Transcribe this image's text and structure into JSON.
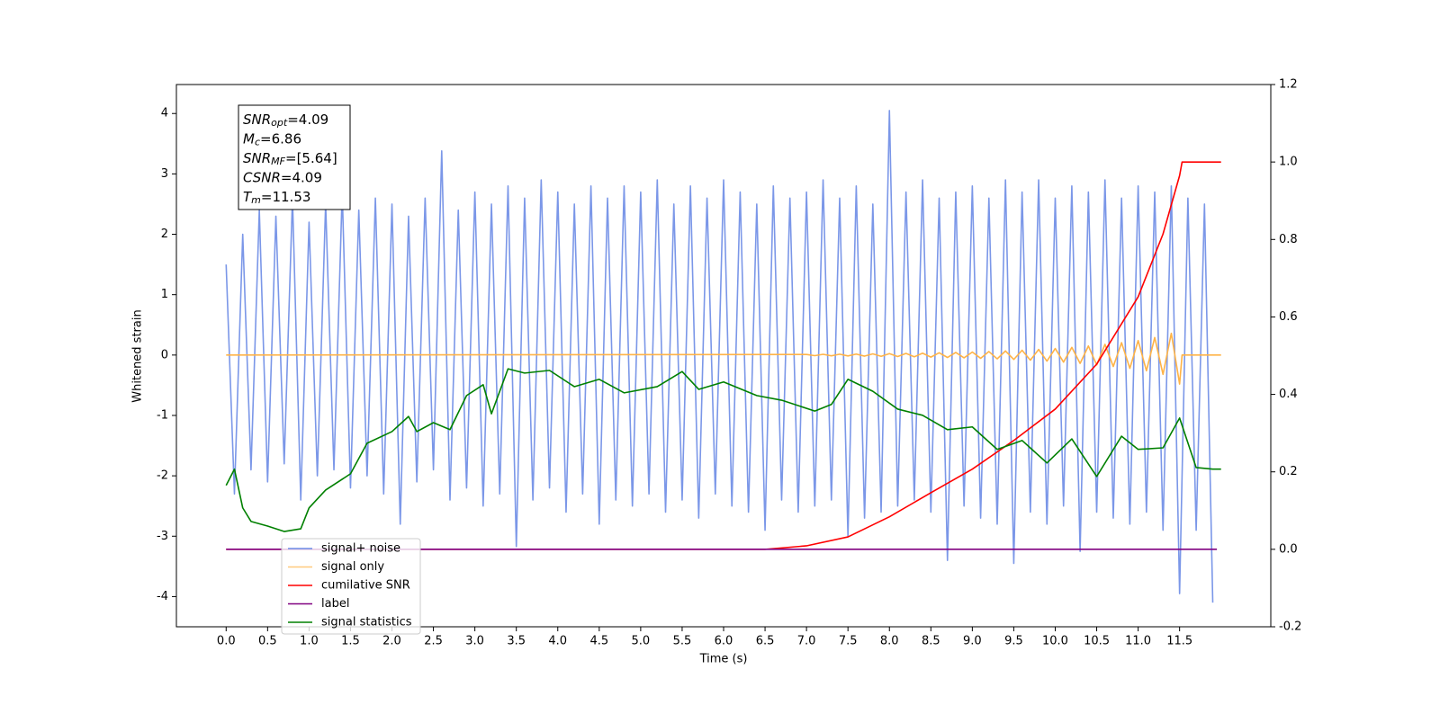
{
  "chart_data": {
    "type": "line",
    "xlabel": "Time (s)",
    "ylabel": "Whitened strain",
    "xlim": [
      -0.6,
      12.6
    ],
    "ylim": [
      -4.5,
      4.48
    ],
    "y2lim": [
      -0.2,
      1.2
    ],
    "xticks": [
      {
        "value": 0,
        "label": "0.0"
      },
      0.5,
      {
        "value": 1,
        "label": "1.0"
      },
      1.5,
      {
        "value": 2,
        "label": "2.0"
      },
      2.5,
      {
        "value": 3,
        "label": "3.0"
      },
      3.5,
      {
        "value": 4,
        "label": "4.0"
      },
      4.5,
      {
        "value": 5,
        "label": "5.0"
      },
      5.5,
      {
        "value": 6,
        "label": "6.0"
      },
      6.5,
      {
        "value": 7,
        "label": "7.0"
      },
      7.5,
      {
        "value": 8,
        "label": "8.0"
      },
      8.5,
      {
        "value": 9,
        "label": "9.0"
      },
      9.5,
      {
        "value": 10,
        "label": "10.0"
      },
      10.5,
      {
        "value": 11,
        "label": "11.0"
      },
      11.5
    ],
    "yticks": [
      -4,
      -3,
      -2,
      -1,
      0,
      1,
      2,
      3,
      4
    ],
    "y2ticks": [
      -0.2,
      {
        "value": 0,
        "label": "0.0"
      },
      0.2,
      0.4,
      0.6,
      0.8,
      {
        "value": 1,
        "label": "1.0"
      },
      1.2
    ],
    "legend_loc": "lower left",
    "annotation": [
      {
        "name": "SNR",
        "sub": "opt",
        "text": "=4.09"
      },
      {
        "name": "M",
        "sub": "c",
        "text": "=6.86"
      },
      {
        "name": "SNR",
        "sub": "MF",
        "text": "=[5.64]"
      },
      {
        "name": "CSNR",
        "text": "=4.09"
      },
      {
        "name": "T",
        "sub": "m",
        "text": "=11.53"
      }
    ],
    "series": [
      {
        "name": "signal+ noise",
        "color": "#6d8ce6",
        "axis": "y",
        "x": [
          0,
          0.1,
          0.2,
          0.3,
          0.4,
          0.5,
          0.6,
          0.7,
          0.8,
          0.9,
          1,
          1.1,
          1.2,
          1.3,
          1.4,
          1.5,
          1.6,
          1.7,
          1.8,
          1.9,
          2,
          2.1,
          2.2,
          2.3,
          2.4,
          2.5,
          2.6,
          2.7,
          2.8,
          2.9,
          3,
          3.1,
          3.2,
          3.3,
          3.4,
          3.5,
          3.6,
          3.7,
          3.8,
          3.9,
          4,
          4.1,
          4.2,
          4.3,
          4.4,
          4.5,
          4.6,
          4.7,
          4.8,
          4.9,
          5,
          5.1,
          5.2,
          5.3,
          5.4,
          5.5,
          5.6,
          5.7,
          5.8,
          5.9,
          6,
          6.1,
          6.2,
          6.3,
          6.4,
          6.5,
          6.6,
          6.7,
          6.8,
          6.9,
          7,
          7.1,
          7.2,
          7.3,
          7.4,
          7.5,
          7.6,
          7.7,
          7.8,
          7.9,
          8,
          8.1,
          8.2,
          8.3,
          8.4,
          8.5,
          8.6,
          8.7,
          8.8,
          8.9,
          9,
          9.1,
          9.2,
          9.3,
          9.4,
          9.5,
          9.6,
          9.7,
          9.8,
          9.9,
          10,
          10.1,
          10.2,
          10.3,
          10.4,
          10.5,
          10.6,
          10.7,
          10.8,
          10.9,
          11,
          11.1,
          11.2,
          11.3,
          11.4,
          11.5,
          11.6,
          11.7,
          11.8,
          11.9
        ],
        "values": [
          1.5,
          -2.3,
          2.0,
          -1.9,
          2.4,
          -2.1,
          2.3,
          -1.8,
          2.6,
          -2.4,
          2.2,
          -2.0,
          2.5,
          -1.9,
          2.7,
          -2.2,
          2.4,
          -2.0,
          2.6,
          -2.3,
          2.5,
          -2.8,
          2.3,
          -2.1,
          2.6,
          -1.9,
          3.38,
          -2.4,
          2.4,
          -2.2,
          2.7,
          -2.5,
          2.5,
          -2.3,
          2.8,
          -3.17,
          2.6,
          -2.4,
          2.9,
          -2.2,
          2.7,
          -2.6,
          2.5,
          -2.3,
          2.8,
          -2.8,
          2.6,
          -2.4,
          2.8,
          -2.5,
          2.7,
          -2.3,
          2.9,
          -2.6,
          2.5,
          -2.4,
          2.8,
          -2.7,
          2.6,
          -2.3,
          2.9,
          -2.5,
          2.7,
          -2.6,
          2.5,
          -2.9,
          2.8,
          -2.4,
          2.6,
          -2.6,
          2.7,
          -2.5,
          2.9,
          -2.4,
          2.6,
          -3.0,
          2.8,
          -2.7,
          2.5,
          -2.6,
          4.05,
          -2.5,
          2.7,
          -2.4,
          2.9,
          -2.6,
          2.6,
          -3.4,
          2.7,
          -2.5,
          2.8,
          -2.7,
          2.6,
          -2.8,
          2.9,
          -3.45,
          2.7,
          -2.6,
          2.9,
          -2.8,
          2.6,
          -2.5,
          2.8,
          -3.25,
          2.7,
          -2.6,
          2.9,
          -2.7,
          2.6,
          -2.8,
          2.8,
          -2.6,
          2.7,
          -2.9,
          2.8,
          -3.95,
          2.6,
          -2.9,
          2.5,
          -4.1
        ]
      },
      {
        "name": "signal only",
        "color": "#ffb347",
        "axis": "y",
        "x": [
          0,
          7,
          7.1,
          7.2,
          7.3,
          7.4,
          7.5,
          7.6,
          7.7,
          7.8,
          7.9,
          8,
          8.1,
          8.2,
          8.3,
          8.4,
          8.5,
          8.6,
          8.7,
          8.8,
          8.9,
          9,
          9.1,
          9.2,
          9.3,
          9.4,
          9.5,
          9.6,
          9.7,
          9.8,
          9.9,
          10,
          10.1,
          10.2,
          10.3,
          10.4,
          10.5,
          10.6,
          10.7,
          10.8,
          10.9,
          11,
          11.1,
          11.2,
          11.3,
          11.4,
          11.5,
          11.53,
          12
        ],
        "values": [
          0,
          0.01,
          -0.01,
          0.012,
          -0.013,
          0.014,
          -0.015,
          0.016,
          -0.018,
          0.02,
          -0.021,
          0.023,
          -0.025,
          0.027,
          -0.029,
          0.031,
          -0.034,
          0.037,
          -0.04,
          0.043,
          -0.046,
          0.05,
          -0.054,
          0.058,
          -0.063,
          0.068,
          -0.073,
          0.079,
          -0.085,
          0.092,
          -0.1,
          0.108,
          -0.117,
          0.127,
          -0.138,
          0.15,
          -0.163,
          0.177,
          -0.19,
          0.205,
          -0.22,
          0.24,
          -0.26,
          0.29,
          -0.32,
          0.36,
          -0.48,
          0,
          0
        ]
      },
      {
        "name": "cumilative SNR",
        "color": "#ff0000",
        "axis": "y2",
        "x": [
          0,
          6.5,
          7,
          7.5,
          8,
          8.5,
          9,
          9.5,
          10,
          10.5,
          11,
          11.3,
          11.5,
          11.53,
          12
        ],
        "values": [
          0,
          0,
          0.009,
          0.032,
          0.084,
          0.146,
          0.207,
          0.281,
          0.362,
          0.478,
          0.652,
          0.814,
          0.965,
          1,
          1
        ]
      },
      {
        "name": "label",
        "color": "#800080",
        "axis": "y2",
        "x": [
          0,
          11.95
        ],
        "values": [
          0,
          0
        ]
      },
      {
        "name": "signal statistics",
        "color": "#008000",
        "axis": "y2",
        "x": [
          0,
          0.1,
          0.2,
          0.3,
          0.5,
          0.7,
          0.9,
          1,
          1.2,
          1.5,
          1.7,
          2,
          2.2,
          2.3,
          2.5,
          2.7,
          2.9,
          3.1,
          3.2,
          3.4,
          3.6,
          3.9,
          4.2,
          4.5,
          4.8,
          5.2,
          5.5,
          5.7,
          6,
          6.4,
          6.7,
          7.1,
          7.3,
          7.5,
          7.8,
          8.1,
          8.4,
          8.7,
          9,
          9.3,
          9.6,
          9.9,
          10.2,
          10.5,
          10.8,
          11,
          11.3,
          11.5,
          11.7,
          11.9,
          12
        ],
        "values": [
          0.165,
          0.207,
          0.107,
          0.072,
          0.06,
          0.046,
          0.053,
          0.107,
          0.153,
          0.195,
          0.274,
          0.304,
          0.343,
          0.304,
          0.327,
          0.309,
          0.397,
          0.425,
          0.35,
          0.466,
          0.455,
          0.462,
          0.42,
          0.439,
          0.404,
          0.42,
          0.459,
          0.413,
          0.432,
          0.397,
          0.385,
          0.357,
          0.374,
          0.439,
          0.408,
          0.362,
          0.346,
          0.309,
          0.316,
          0.258,
          0.281,
          0.223,
          0.285,
          0.188,
          0.292,
          0.258,
          0.262,
          0.339,
          0.211,
          0.207,
          0.207
        ]
      }
    ]
  }
}
